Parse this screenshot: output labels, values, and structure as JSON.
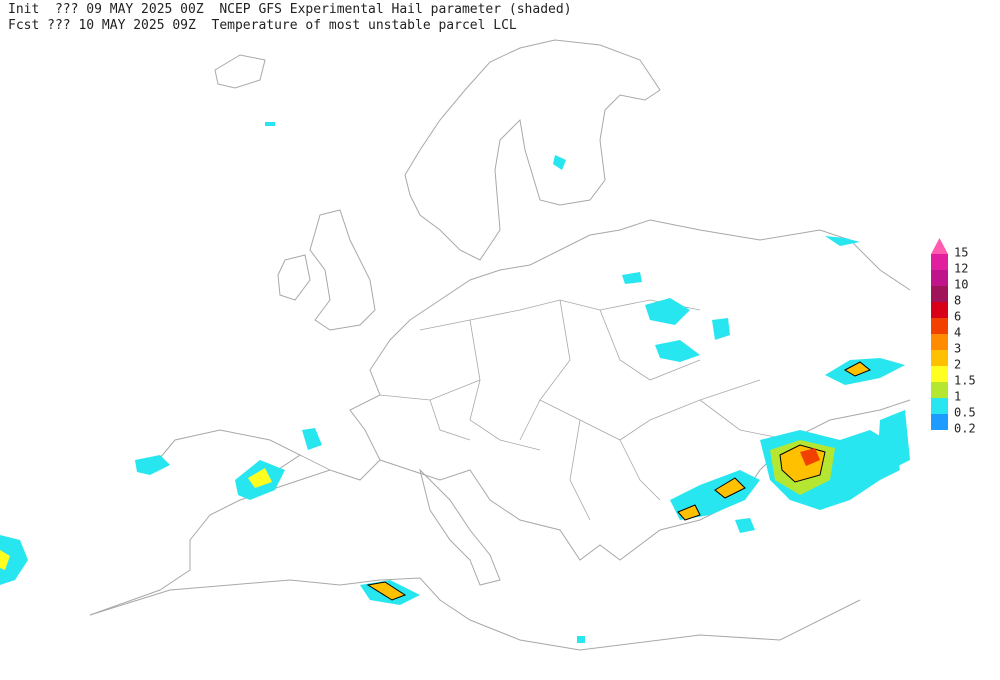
{
  "header": {
    "line1": "Init  ??? 09 MAY 2025 00Z  NCEP GFS Experimental Hail parameter (shaded)",
    "line2": "Fcst ??? 10 MAY 2025 09Z  Temperature of most unstable parcel LCL"
  },
  "legend": {
    "levels": [
      15,
      12,
      10,
      8,
      6,
      4,
      3,
      2,
      1.5,
      1,
      0.5,
      0.2
    ],
    "over_color": "#ff5cb0",
    "colors": [
      "#e21ea0",
      "#c0148a",
      "#a0145a",
      "#d80018",
      "#f24000",
      "#ff8c00",
      "#ffc000",
      "#ffff20",
      "#b4e632",
      "#28e6f0",
      "#1e9bff"
    ]
  }
}
